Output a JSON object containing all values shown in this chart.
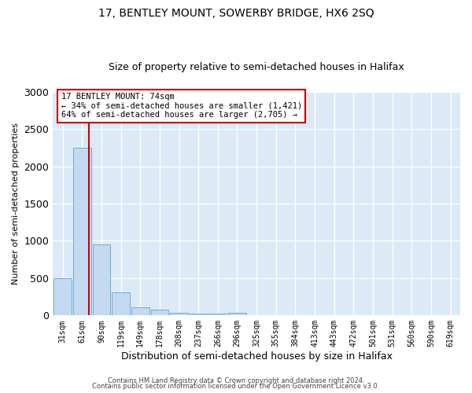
{
  "title": "17, BENTLEY MOUNT, SOWERBY BRIDGE, HX6 2SQ",
  "subtitle": "Size of property relative to semi-detached houses in Halifax",
  "xlabel": "Distribution of semi-detached houses by size in Halifax",
  "ylabel": "Number of semi-detached properties",
  "categories": [
    "31sqm",
    "61sqm",
    "90sqm",
    "119sqm",
    "149sqm",
    "178sqm",
    "208sqm",
    "237sqm",
    "266sqm",
    "296sqm",
    "325sqm",
    "355sqm",
    "384sqm",
    "413sqm",
    "443sqm",
    "472sqm",
    "501sqm",
    "531sqm",
    "560sqm",
    "590sqm",
    "619sqm"
  ],
  "values": [
    500,
    2250,
    950,
    310,
    110,
    80,
    35,
    20,
    20,
    35,
    0,
    0,
    0,
    0,
    0,
    0,
    0,
    0,
    0,
    0,
    0
  ],
  "bar_color": "#c5d9f0",
  "bar_edge_color": "#6baed6",
  "background_color": "#dce9f7",
  "grid_color": "#ffffff",
  "red_line_color": "#cc0000",
  "red_line_x": 1.35,
  "annotation_line1": "17 BENTLEY MOUNT: 74sqm",
  "annotation_line2": "← 34% of semi-detached houses are smaller (1,421)",
  "annotation_line3": "64% of semi-detached houses are larger (2,705) →",
  "annotation_box_color": "#ffffff",
  "annotation_border_color": "#cc0000",
  "ylim": [
    0,
    3000
  ],
  "yticks": [
    0,
    500,
    1000,
    1500,
    2000,
    2500,
    3000
  ],
  "footer1": "Contains HM Land Registry data © Crown copyright and database right 2024.",
  "footer2": "Contains public sector information licensed under the Open Government Licence v3.0.",
  "title_fontsize": 10,
  "subtitle_fontsize": 9,
  "ylabel_fontsize": 8,
  "xlabel_fontsize": 9
}
